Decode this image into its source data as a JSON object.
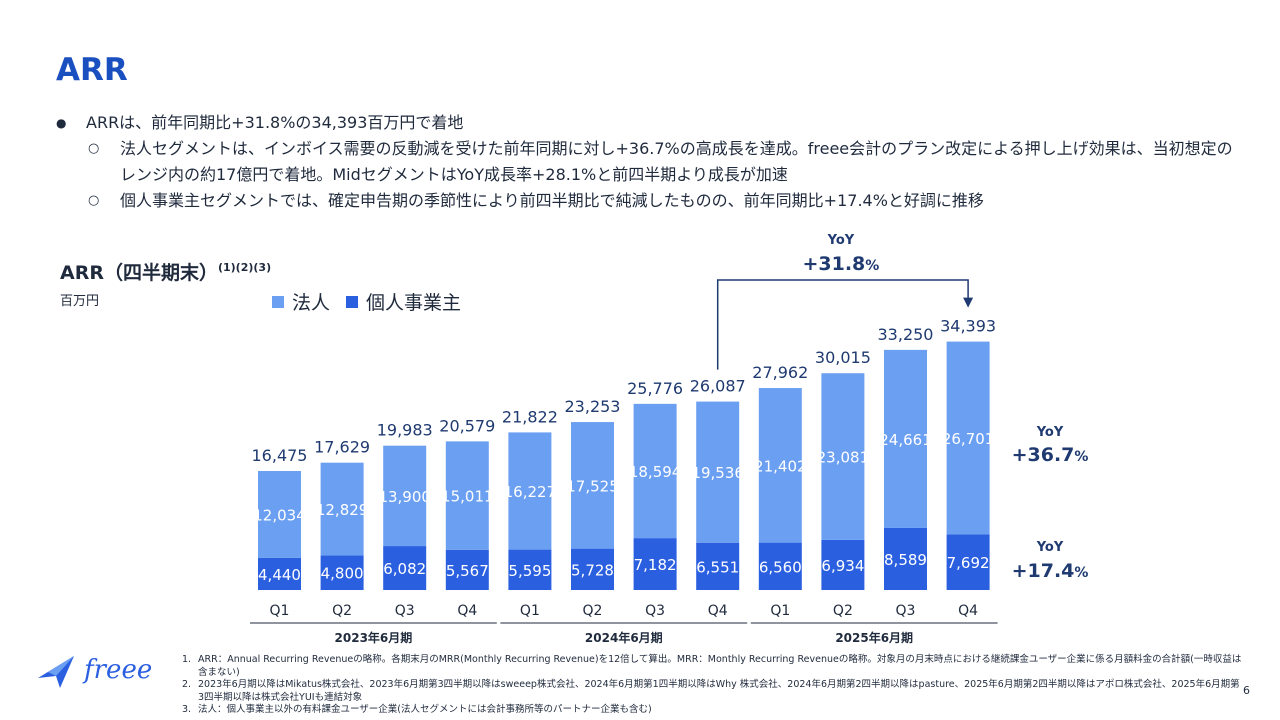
{
  "page": {
    "title": "ARR",
    "bullets": [
      {
        "level": 1,
        "mark": "●",
        "text": "ARRは、前年同期比+31.8%の34,393百万円で着地"
      },
      {
        "level": 2,
        "mark": "○",
        "text": "法人セグメントは、インボイス需要の反動減を受けた前年同期に対し+36.7%の高成長を達成。freee会計のプラン改定による押し上げ効果は、当初想定のレンジ内の約17億円で着地。MidセグメントはYoY成長率+28.1%と前四半期より成長が加速"
      },
      {
        "level": 2,
        "mark": "○",
        "text": "個人事業主セグメントでは、確定申告期の季節性により前四半期比で純減したものの、前年同期比+17.4%と好調に推移"
      }
    ],
    "page_number": "6",
    "logo_text": "freee"
  },
  "chart_data": {
    "type": "bar",
    "stacked": true,
    "title": "ARR（四半期末）",
    "title_superscript": "(1)(2)(3)",
    "unit": "百万円",
    "categories": [
      "Q1",
      "Q2",
      "Q3",
      "Q4",
      "Q1",
      "Q2",
      "Q3",
      "Q4",
      "Q1",
      "Q2",
      "Q3",
      "Q4"
    ],
    "groups": [
      {
        "label": "2023年6月期",
        "count": 4
      },
      {
        "label": "2024年6月期",
        "count": 4
      },
      {
        "label": "2025年6月期",
        "count": 4
      }
    ],
    "series": [
      {
        "name": "法人",
        "color": "#6b9ff2",
        "values": [
          12034,
          12829,
          13900,
          15011,
          16227,
          17525,
          18594,
          19536,
          21402,
          23081,
          24661,
          26701
        ]
      },
      {
        "name": "個人事業主",
        "color": "#2a5fe0",
        "values": [
          4440,
          4800,
          6082,
          5567,
          5595,
          5728,
          7182,
          6551,
          6560,
          6934,
          8589,
          7692
        ]
      }
    ],
    "totals": [
      16475,
      17629,
      19983,
      20579,
      21822,
      23253,
      25776,
      26087,
      27962,
      30015,
      33250,
      34393
    ],
    "annotations": {
      "total_yoy": {
        "label": "YoY",
        "value": "+31.8",
        "unit": "%"
      },
      "corporate_yoy": {
        "label": "YoY",
        "value": "+36.7",
        "unit": "%"
      },
      "individual_yoy": {
        "label": "YoY",
        "value": "+17.4",
        "unit": "%"
      }
    },
    "ylim": [
      0,
      36000
    ]
  },
  "footnotes": [
    {
      "n": "1.",
      "text": "ARR：Annual Recurring Revenueの略称。各期末月のMRR(Monthly Recurring Revenue)を12倍して算出。MRR：Monthly Recurring Revenueの略称。対象月の月末時点における継続課金ユーザー企業に係る月額料金の合計額(一時収益は含まない)"
    },
    {
      "n": "2.",
      "text": "2023年6月期以降はMikatus株式会社、2023年6月期第3四半期以降はsweeep株式会社、2024年6月期第1四半期以降はWhy 株式会社、2024年6月期第2四半期以降はpasture、2025年6月期第2四半期以降はアポロ株式会社、2025年6月期第3四半期以降は株式会社YUIも連結対象"
    },
    {
      "n": "3.",
      "text": "法人：個人事業主以外の有料課金ユーザー企業(法人セグメントには会計事務所等のパートナー企業も含む)"
    }
  ]
}
